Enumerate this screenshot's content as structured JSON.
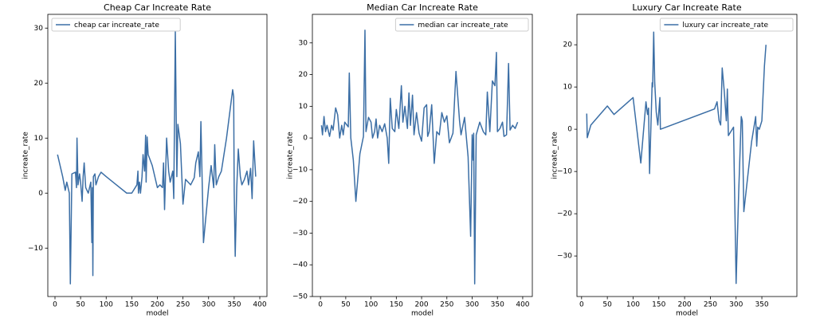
{
  "chart_data": [
    {
      "type": "line",
      "title": "Cheap Car Increate Rate",
      "x_label": "model",
      "y_label": "increate_rate",
      "x": [
        5,
        15,
        20,
        23,
        28,
        30,
        33,
        40,
        42,
        43,
        45,
        48,
        50,
        53,
        55,
        57,
        60,
        65,
        70,
        72,
        73,
        74,
        75,
        78,
        80,
        85,
        90,
        100,
        120,
        140,
        150,
        160,
        162,
        163,
        165,
        167,
        170,
        172,
        175,
        177,
        178,
        180,
        182,
        190,
        200,
        205,
        210,
        212,
        214,
        218,
        222,
        225,
        230,
        232,
        235,
        238,
        240,
        245,
        250,
        255,
        265,
        272,
        275,
        280,
        283,
        285,
        290,
        300,
        305,
        310,
        312,
        315,
        320,
        325,
        335,
        347,
        349,
        350,
        352,
        355,
        358,
        362,
        365,
        370,
        375,
        378,
        382,
        385,
        388,
        392
      ],
      "series": [
        {
          "name": "cheap car increate_rate",
          "color": "#3b6ea5",
          "values": [
            7,
            3,
            0.5,
            2,
            0,
            -16.5,
            3.5,
            3.8,
            1,
            10,
            1.5,
            3.5,
            2,
            -1.5,
            3,
            5.5,
            1,
            0,
            2,
            -9,
            1,
            -15,
            3,
            3.5,
            1.5,
            3,
            3.8,
            3,
            1.5,
            0,
            0,
            1.5,
            4,
            0,
            2,
            0,
            3,
            7,
            4,
            10.5,
            2,
            10.2,
            7,
            5,
            1,
            1.5,
            1,
            5.5,
            -3,
            10,
            4,
            2,
            4,
            -1,
            29.5,
            3,
            12.5,
            9,
            -2,
            2.5,
            1.5,
            2.8,
            5.5,
            7.5,
            3,
            13,
            -9,
            1,
            5,
            1,
            8.8,
            1.5,
            3,
            4,
            10,
            18.8,
            17.5,
            0.5,
            -11.5,
            1,
            8,
            3,
            1.5,
            2.5,
            4,
            1.5,
            4.5,
            -1,
            9.5,
            3
          ]
        }
      ],
      "xlim": [
        -14,
        414
      ],
      "ylim": [
        -18.8,
        32.5
      ],
      "xticks": [
        0,
        50,
        100,
        150,
        200,
        250,
        300,
        350,
        400
      ],
      "yticks": [
        {
          "value": -10,
          "label": "−10"
        },
        0,
        10,
        20,
        30
      ],
      "legend": "upper left"
    },
    {
      "type": "line",
      "title": "Median Car Increate Rate",
      "x_label": "model",
      "y_label": "increate_rate",
      "x": [
        2,
        4,
        7,
        10,
        13,
        18,
        22,
        25,
        30,
        34,
        38,
        42,
        45,
        48,
        55,
        57,
        60,
        65,
        70,
        78,
        85,
        88,
        90,
        95,
        100,
        103,
        107,
        110,
        113,
        117,
        122,
        127,
        132,
        135,
        138,
        142,
        147,
        150,
        155,
        160,
        163,
        167,
        172,
        175,
        178,
        182,
        185,
        190,
        195,
        200,
        205,
        210,
        212,
        215,
        220,
        225,
        230,
        235,
        240,
        245,
        250,
        255,
        262,
        268,
        275,
        278,
        285,
        292,
        297,
        300,
        302,
        303,
        305,
        308,
        315,
        322,
        327,
        330,
        335,
        340,
        345,
        348,
        350,
        355,
        360,
        363,
        368,
        372,
        375,
        380,
        385,
        390
      ],
      "series": [
        {
          "name": "median car increate_rate",
          "color": "#3b6ea5",
          "values": [
            4,
            1,
            6.8,
            2,
            4,
            0.5,
            4,
            2.5,
            9.5,
            7.3,
            0,
            4,
            1,
            5,
            3.5,
            20.5,
            0,
            -7,
            -20,
            -5,
            0.5,
            34,
            2,
            6.5,
            5,
            0,
            2,
            6,
            0,
            4,
            2,
            4.5,
            0,
            -8,
            12.5,
            3,
            2,
            9,
            3,
            16.5,
            5,
            10,
            3,
            14.2,
            4,
            13.5,
            1,
            8,
            1.5,
            -1,
            9.5,
            10.5,
            0.5,
            2,
            10.5,
            -8,
            2,
            1,
            8,
            5,
            7,
            -1.5,
            1.5,
            21,
            5.5,
            1,
            6.5,
            -6,
            -31,
            1,
            -7,
            1.5,
            -46,
            1,
            5,
            2,
            1,
            14.5,
            2,
            18,
            16.5,
            27,
            2,
            3,
            5,
            0.5,
            1,
            23.5,
            2.5,
            4,
            3,
            5
          ]
        }
      ],
      "xlim": [
        -16,
        419
      ],
      "ylim": [
        -50,
        39
      ],
      "xticks": [
        0,
        50,
        100,
        150,
        200,
        250,
        300,
        350,
        400
      ],
      "yticks": [
        {
          "value": -50,
          "label": "−50"
        },
        {
          "value": -40,
          "label": "−40"
        },
        {
          "value": -30,
          "label": "−30"
        },
        {
          "value": -20,
          "label": "−20"
        },
        {
          "value": -10,
          "label": "−10"
        },
        0,
        10,
        20,
        30
      ],
      "legend": "upper right"
    },
    {
      "type": "line",
      "title": "Luxury Car Increate Rate",
      "x_label": "model",
      "y_label": "increate_rate",
      "x": [
        10,
        11,
        18,
        50,
        63,
        100,
        115,
        125,
        128,
        130,
        132,
        137,
        138,
        140,
        142,
        145,
        148,
        152,
        153,
        258,
        263,
        267,
        270,
        273,
        277,
        281,
        283,
        285,
        295,
        300,
        305,
        310,
        312,
        315,
        320,
        330,
        338,
        340,
        342,
        345,
        350,
        355,
        358
      ],
      "series": [
        {
          "name": "luxury car increate_rate",
          "color": "#3b6ea5",
          "values": [
            3.7,
            -2,
            1,
            5.5,
            3.5,
            7.5,
            -8,
            6.5,
            3.5,
            5,
            -10.5,
            11,
            10,
            23,
            11,
            4,
            1,
            7.5,
            0,
            4.8,
            6.5,
            2,
            1,
            14.5,
            9,
            2,
            9.5,
            -1.5,
            0.5,
            -36.5,
            -15,
            3,
            2,
            -19.5,
            -14,
            -3,
            3,
            -4,
            0.5,
            0,
            2,
            15,
            20
          ]
        }
      ],
      "xlim": [
        -9,
        418
      ],
      "ylim": [
        -39.6,
        27.2
      ],
      "xticks": [
        0,
        50,
        100,
        150,
        200,
        250,
        300,
        350
      ],
      "yticks": [
        {
          "value": -30,
          "label": "−30"
        },
        {
          "value": -20,
          "label": "−20"
        },
        {
          "value": -10,
          "label": "−10"
        },
        0,
        10,
        20
      ],
      "legend": "upper right"
    }
  ]
}
